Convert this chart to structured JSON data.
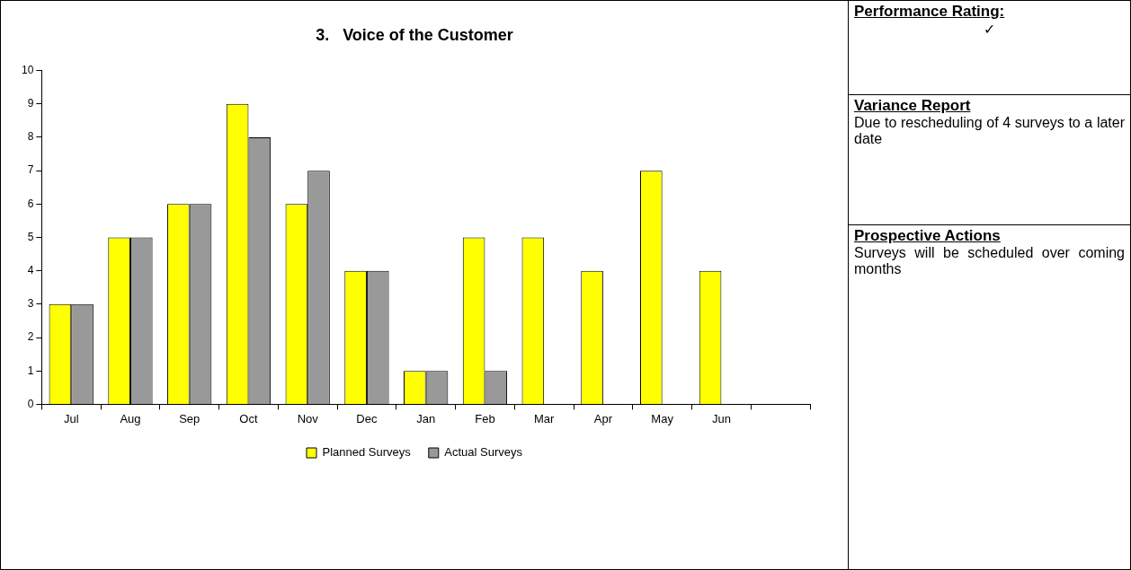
{
  "chart_data": [
    {
      "type": "bar",
      "title": "3.   Voice of the Customer",
      "categories": [
        "Jul",
        "Aug",
        "Sep",
        "Oct",
        "Nov",
        "Dec",
        "Jan",
        "Feb",
        "Mar",
        "Apr",
        "May",
        "Jun",
        null
      ],
      "series": [
        {
          "name": "Planned Surveys",
          "color": "#ffff00",
          "values": [
            3,
            5,
            6,
            9,
            6,
            4,
            1,
            5,
            5,
            4,
            7,
            4,
            null
          ]
        },
        {
          "name": "Actual Surveys",
          "color": "#999999",
          "values": [
            3,
            5,
            6,
            8,
            7,
            4,
            1,
            1,
            null,
            null,
            null,
            null,
            null
          ]
        }
      ],
      "ylim": [
        0,
        10
      ],
      "yticks": [
        0,
        1,
        2,
        3,
        4,
        5,
        6,
        7,
        8,
        9,
        10
      ],
      "legend": "bottom"
    },
    {
      "type": "other",
      "annotations": [
        "Performance Rating:",
        "✓",
        "Variance Report",
        "Due to rescheduling of 4 surveys to a later date",
        "Prospective Actions",
        "Surveys will be scheduled over coming months"
      ]
    }
  ]
}
